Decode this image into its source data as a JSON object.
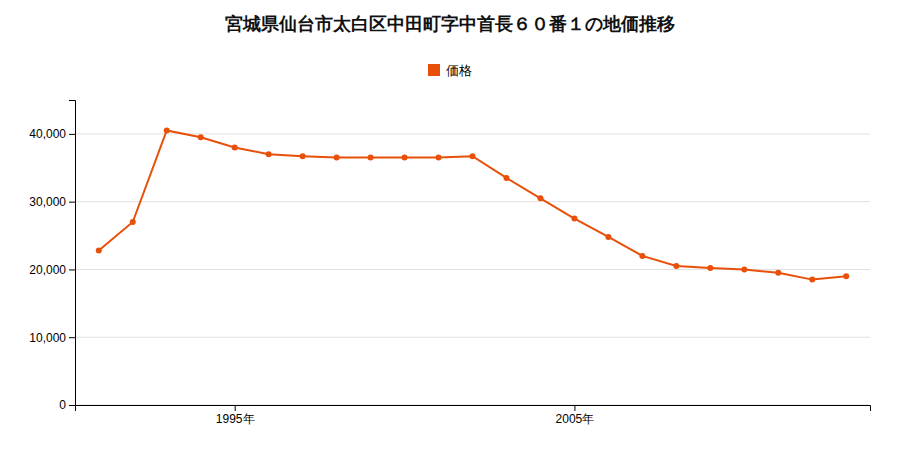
{
  "chart_data": {
    "type": "line",
    "title": "宮城県仙台市太白区中田町字中首長６０番１の地価推移",
    "x": [
      1991,
      1992,
      1993,
      1994,
      1995,
      1996,
      1997,
      1998,
      1999,
      2000,
      2001,
      2002,
      2003,
      2004,
      2005,
      2006,
      2007,
      2008,
      2009,
      2010,
      2011,
      2012,
      2013
    ],
    "series": [
      {
        "name": "価格",
        "color": "#e8500a",
        "marker": "circle",
        "values": [
          22800,
          27000,
          40500,
          39500,
          38000,
          37000,
          36700,
          36500,
          36500,
          36500,
          36500,
          36700,
          33500,
          30500,
          27500,
          24800,
          22000,
          20500,
          20200,
          20000,
          19500,
          18500,
          19000
        ]
      }
    ],
    "xlim": [
      1990.3,
      2013.7
    ],
    "xticks": [
      {
        "value": 1995,
        "label": "1995年"
      },
      {
        "value": 2005,
        "label": "2005年"
      }
    ],
    "ylim": [
      0,
      45000
    ],
    "yticks": [
      0,
      {
        "value": 10000,
        "label": "10,000"
      },
      {
        "value": 20000,
        "label": "20,000"
      },
      {
        "value": 30000,
        "label": "30,000"
      },
      {
        "value": 40000,
        "label": "40,000"
      }
    ],
    "grid": true,
    "legend": "top"
  }
}
